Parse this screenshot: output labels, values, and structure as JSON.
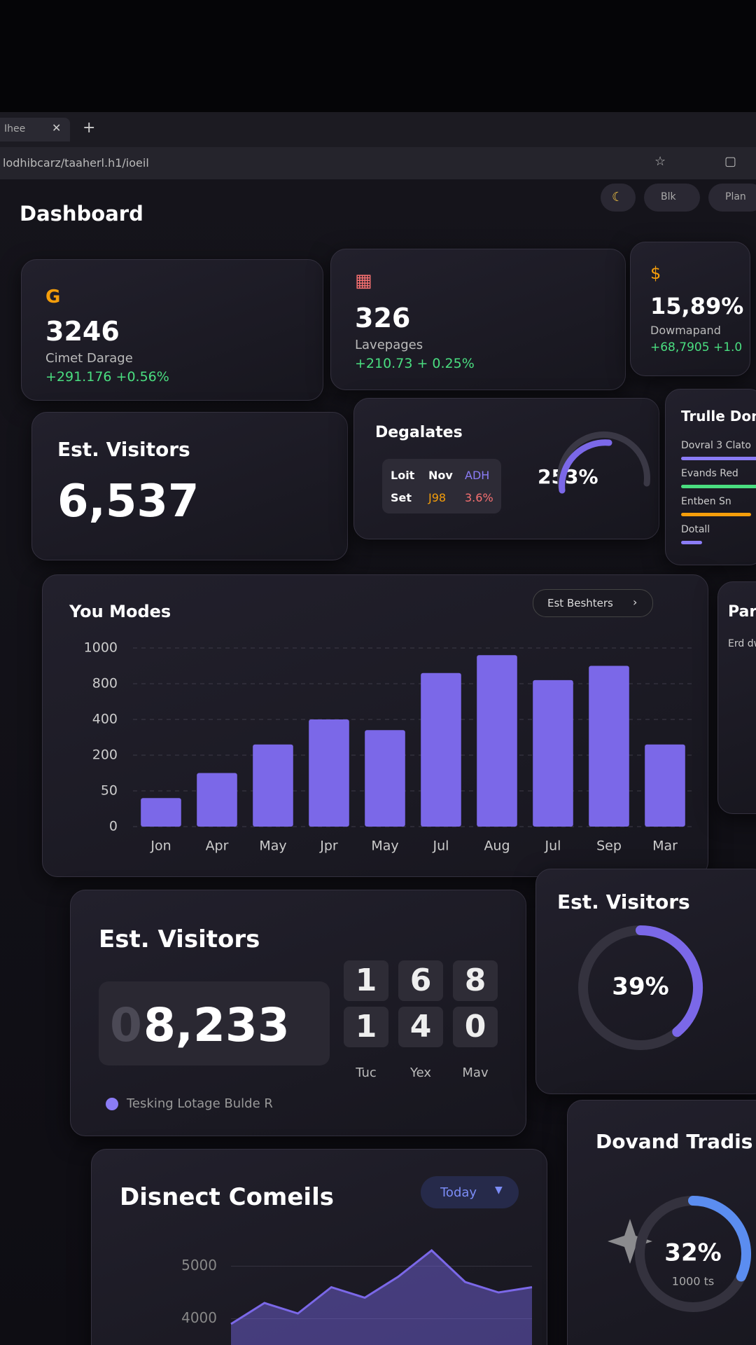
{
  "browser": {
    "tab": "Ihee",
    "url": "lodhibcarz/taaherl.h1/ioeil"
  },
  "header": {
    "title": "Dashboard",
    "buttons": [
      "Blk",
      "Plan"
    ]
  },
  "stats": [
    {
      "value": "3246",
      "label": "Cimet Darage",
      "delta": "+291.176 +0.56%"
    },
    {
      "value": "326",
      "label": "Lavepages",
      "delta": "+210.73 + 0.25%"
    },
    {
      "value": "15,89%",
      "label": "Dowmapand",
      "delta": "+68,7905 +1.0"
    }
  ],
  "visitors": {
    "title": "Est. Visitors",
    "value": "6,537"
  },
  "degalates": {
    "title": "Degalates",
    "table": [
      [
        "Loit",
        "Nov",
        "ADH"
      ],
      [
        "Set",
        "J98",
        "3.6%"
      ]
    ],
    "gauge": "253%"
  },
  "trends": {
    "title": "Trulle Don",
    "items": [
      "Dovral 3 Clato",
      "Evands Red",
      "Entben Sn",
      "Dotall"
    ]
  },
  "side_card": {
    "title": "Par",
    "text": "Erd dw"
  },
  "bar_chart": {
    "type": "bar",
    "title": "You Modes",
    "button": "Est Beshters",
    "categories": [
      "Jon",
      "Apr",
      "May",
      "Jpr",
      "May",
      "Jul",
      "Aug",
      "Jul",
      "Sep",
      "Mar"
    ],
    "values": [
      40,
      125,
      260,
      400,
      340,
      860,
      960,
      820,
      900,
      260
    ],
    "color": "#7b68e8",
    "yticks": [
      0,
      50,
      200,
      400,
      800,
      1000
    ],
    "grid": true
  },
  "counter": {
    "title": "Est. Visitors",
    "lead": "0",
    "value": "8,233",
    "tiles": [
      [
        "1",
        "1"
      ],
      [
        "6",
        "4"
      ],
      [
        "8",
        "0"
      ]
    ],
    "tile_labels": [
      "Tuc",
      "Yex",
      "Mav"
    ],
    "legend": "Tesking Lotage Bulde R"
  },
  "gauge_visitors": {
    "type": "gauge",
    "title": "Est. Visitors",
    "value": {
      "value": 39,
      "label": "39%"
    },
    "color": "#7b68e8"
  },
  "area_chart": {
    "type": "area",
    "title": "Disnect Comeils",
    "button": "Today",
    "values": [
      3900,
      4300,
      4100,
      4600,
      4400,
      4800,
      5300,
      4700,
      4500,
      4600
    ],
    "ylim": [
      3500,
      5500
    ],
    "yticks": [
      4000,
      5000
    ],
    "color": "#7b68e8"
  },
  "gauge_trades": {
    "type": "gauge",
    "title": "Dovand Tradis",
    "value": {
      "value": 32,
      "label": "32%"
    },
    "subtitle": "1000 ts",
    "color": "#5b8df0"
  }
}
